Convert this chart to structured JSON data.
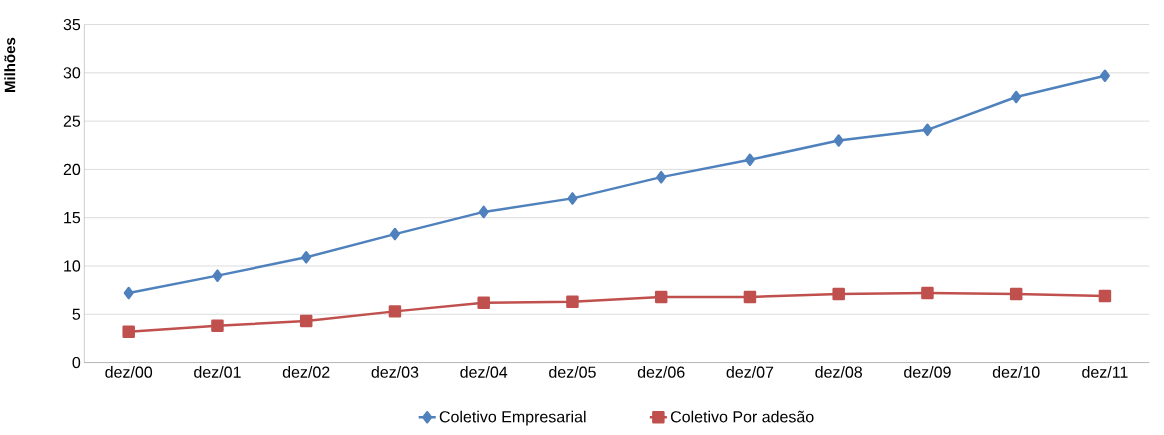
{
  "chart_data": {
    "type": "line",
    "ylabel": "Milhões",
    "categories": [
      "dez/00",
      "dez/01",
      "dez/02",
      "dez/03",
      "dez/04",
      "dez/05",
      "dez/06",
      "dez/07",
      "dez/08",
      "dez/09",
      "dez/10",
      "dez/11"
    ],
    "series": [
      {
        "name": "Coletivo Empresarial",
        "color": "#4f81bd",
        "marker": "diamond",
        "values": [
          7.2,
          9.0,
          10.9,
          13.3,
          15.6,
          17.0,
          19.2,
          21.0,
          23.0,
          24.1,
          27.5,
          29.7
        ]
      },
      {
        "name": "Coletivo Por adesão",
        "color": "#c0504d",
        "marker": "square",
        "values": [
          3.2,
          3.8,
          4.3,
          5.3,
          6.2,
          6.3,
          6.8,
          6.8,
          7.1,
          7.2,
          7.1,
          6.9
        ]
      }
    ],
    "ylim": [
      0,
      35
    ],
    "yticks": [
      0,
      5,
      10,
      15,
      20,
      25,
      30,
      35
    ],
    "grid": "y",
    "legend": "bottom",
    "line_style": "solid"
  }
}
